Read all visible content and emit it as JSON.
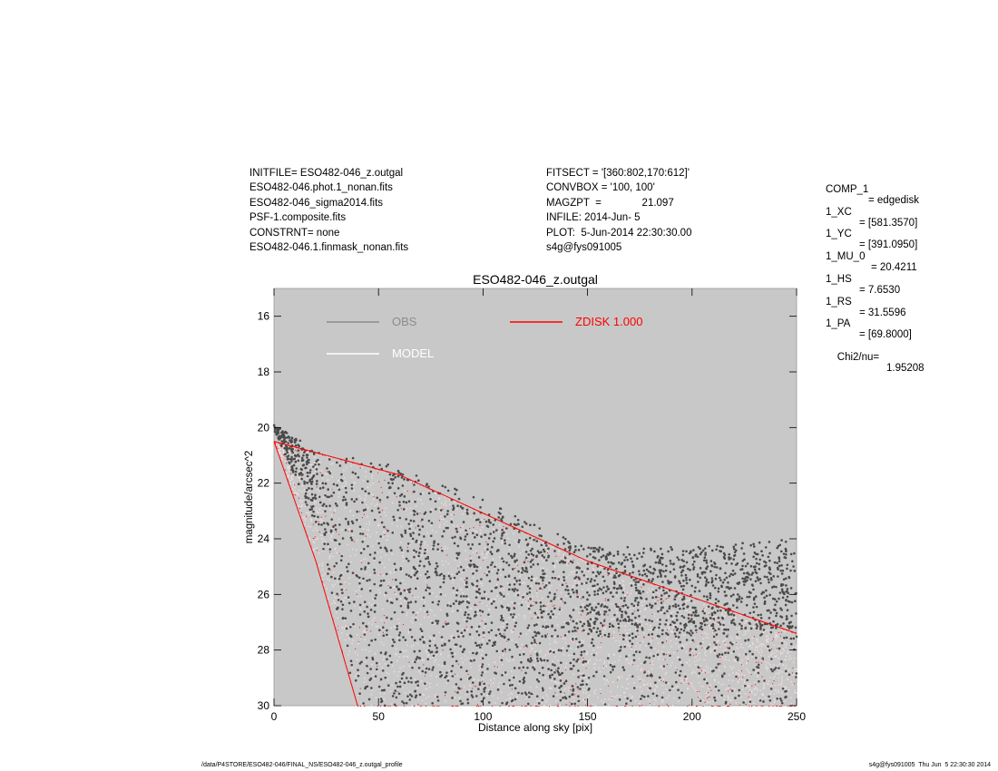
{
  "header": {
    "left_lines": [
      "INITFILE= ESO482-046_z.outgal",
      "ESO482-046.phot.1_nonan.fits",
      "ESO482-046_sigma2014.fits",
      "PSF-1.composite.fits",
      "CONSTRNT= none",
      "ESO482-046.1.finmask_nonan.fits"
    ],
    "mid_lines": [
      "FITSECT = '[360:802,170:612]'",
      "CONVBOX = '100, 100'",
      "MAGZPT  =              21.097",
      "INFILE: 2014-Jun- 5",
      "PLOT:  5-Jun-2014 22:30:30.00",
      "s4g@fys091005"
    ]
  },
  "params": [
    {
      "key": "COMP_1",
      "value": "= edgedisk"
    },
    {
      "key": "1_XC",
      "value": "= [581.3570]"
    },
    {
      "key": "1_YC",
      "value": "= [391.0950]"
    },
    {
      "key": "1_MU_0",
      "value": "= 20.4211"
    },
    {
      "key": "1_HS",
      "value": "= 7.6530"
    },
    {
      "key": "1_RS",
      "value": "= 31.5596"
    },
    {
      "key": "1_PA",
      "value": "= [69.8000]"
    }
  ],
  "chi": {
    "label": "Chi2/nu=",
    "value": "1.95208"
  },
  "footer": {
    "left": "/data/P4STORE/ESO482-046/FINAL_NS/ESO482-046_z.outgal_profile",
    "right": "s4g@fys091005  Thu Jun  5 22:30:30 2014"
  },
  "colors": {
    "plot_background": "#c8c8c8",
    "obs_points": "#4a4a4a",
    "model_points": "#f2dede",
    "component": "#ff0000",
    "obs_legend": "#8c8c8c",
    "model_legend": "#ffffff"
  },
  "chart_data": {
    "type": "scatter",
    "title": "ESO482-046_z.outgal",
    "xlabel": "Distance along sky [pix]",
    "ylabel": "magnitude/arcsec^2",
    "xlim": [
      0,
      250
    ],
    "ylim": [
      30,
      15
    ],
    "y_inverted": true,
    "xticks": [
      0,
      50,
      100,
      150,
      200,
      250
    ],
    "yticks": [
      16,
      18,
      20,
      22,
      24,
      26,
      28,
      30
    ],
    "legend": [
      {
        "name": "OBS",
        "color": "#8c8c8c"
      },
      {
        "name": "MODEL",
        "color": "#ffffff"
      },
      {
        "name": "ZDISK  1.000",
        "color": "#ff0000"
      }
    ],
    "series": [
      {
        "name": "OBS",
        "description_points": "dense point cloud",
        "upper_envelope": [
          [
            0,
            19.9
          ],
          [
            20,
            20.8
          ],
          [
            60,
            21.4
          ],
          [
            100,
            22.6
          ],
          [
            150,
            24.3
          ],
          [
            200,
            24.3
          ],
          [
            250,
            24.0
          ]
        ],
        "lower_envelope": [
          [
            0,
            20.1
          ],
          [
            20,
            23.5
          ],
          [
            40,
            30.0
          ],
          [
            250,
            30.0
          ]
        ]
      },
      {
        "name": "MODEL",
        "upper_envelope": [
          [
            0,
            20.5
          ],
          [
            60,
            21.7
          ],
          [
            150,
            24.8
          ],
          [
            250,
            27.4
          ]
        ],
        "lower_envelope": [
          [
            0,
            20.5
          ],
          [
            20,
            24.8
          ],
          [
            40,
            30.0
          ],
          [
            250,
            30.0
          ]
        ]
      },
      {
        "name": "ZDISK  1.000",
        "upper_envelope": [
          [
            0,
            20.5
          ],
          [
            60,
            21.7
          ],
          [
            150,
            24.8
          ],
          [
            250,
            27.4
          ]
        ],
        "lower_envelope": [
          [
            0,
            20.5
          ],
          [
            20,
            24.8
          ],
          [
            40,
            30.0
          ],
          [
            250,
            30.0
          ]
        ]
      }
    ]
  }
}
